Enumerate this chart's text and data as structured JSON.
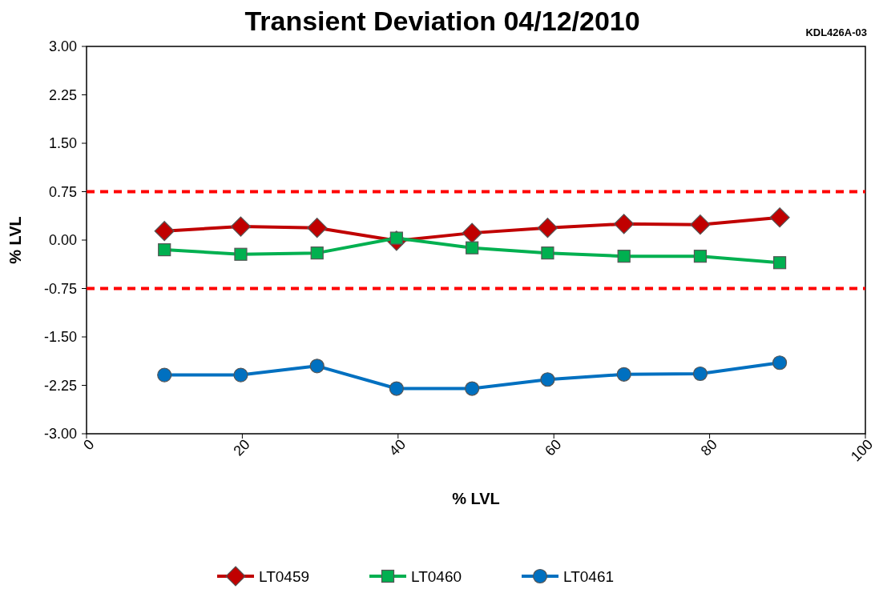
{
  "chart_data": {
    "type": "line",
    "title": "Transient Deviation 04/12/2010",
    "xlabel": "% LVL",
    "ylabel": "% LVL",
    "annotations": [
      "KDL426A-03"
    ],
    "x": [
      10,
      19.8,
      29.6,
      39.8,
      49.5,
      59.2,
      69,
      78.8,
      89
    ],
    "series": [
      {
        "name": "LT0459",
        "color": "#c00000",
        "marker": "diamond",
        "values": [
          0.14,
          0.21,
          0.19,
          -0.01,
          0.11,
          0.19,
          0.25,
          0.24,
          0.35
        ]
      },
      {
        "name": "LT0460",
        "color": "#00b050",
        "marker": "square",
        "values": [
          -0.15,
          -0.22,
          -0.2,
          0.03,
          -0.12,
          -0.2,
          -0.25,
          -0.25,
          -0.35
        ]
      },
      {
        "name": "LT0461",
        "color": "#0070c0",
        "marker": "circle",
        "values": [
          -2.09,
          -2.09,
          -1.95,
          -2.3,
          -2.3,
          -2.16,
          -2.08,
          -2.07,
          -1.9
        ]
      }
    ],
    "xlim": [
      0,
      100
    ],
    "xticks": [
      0,
      20,
      40,
      60,
      80,
      100
    ],
    "ylim": [
      -3,
      3
    ],
    "yticks": [
      {
        "value": -3,
        "label": "-3.00"
      },
      {
        "value": -2.25,
        "label": "-2.25"
      },
      {
        "value": -1.5,
        "label": "-1.50"
      },
      {
        "value": -0.75,
        "label": "-0.75"
      },
      {
        "value": 0,
        "label": "0.00"
      },
      {
        "value": 0.75,
        "label": "0.75"
      },
      {
        "value": 1.5,
        "label": "1.50"
      },
      {
        "value": 2.25,
        "label": "2.25"
      },
      {
        "value": 3,
        "label": "3.00"
      }
    ],
    "ref_lines": [
      {
        "axis": "y",
        "value": 0.75,
        "color": "#ff0000",
        "line_style": "dashed"
      },
      {
        "axis": "y",
        "value": -0.75,
        "color": "#ff0000",
        "line_style": "dashed"
      }
    ],
    "grid": false,
    "legend": "bottom",
    "line_style": "solid"
  }
}
